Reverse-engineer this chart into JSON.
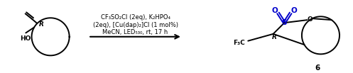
{
  "bg_color": "#ffffff",
  "text_color": "#000000",
  "blue_color": "#0000cc",
  "reaction_lines": [
    "CF₃SO₂Cl (2eq), K₂HPO₄",
    "(2eq), [Cu(dap)₂]Cl (1 mol%)",
    "MeCN, LED₅₃₀, rt, 17 h"
  ],
  "compound_number": "6",
  "figsize": [
    4.97,
    1.03
  ],
  "dpi": 100
}
